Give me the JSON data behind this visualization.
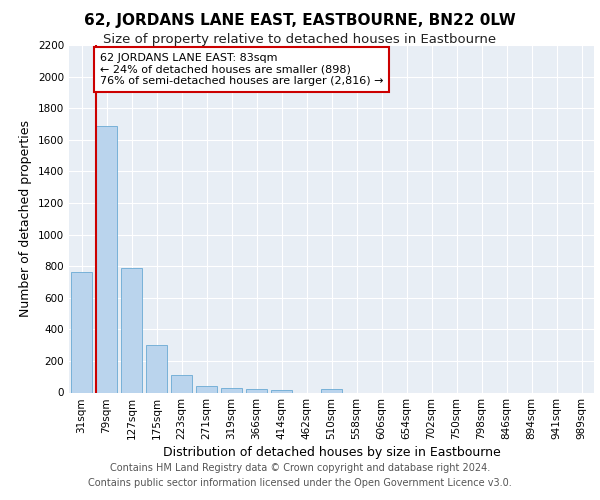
{
  "title": "62, JORDANS LANE EAST, EASTBOURNE, BN22 0LW",
  "subtitle": "Size of property relative to detached houses in Eastbourne",
  "xlabel": "Distribution of detached houses by size in Eastbourne",
  "ylabel": "Number of detached properties",
  "bar_color": "#bad4ed",
  "bar_edge_color": "#6aaad4",
  "background_color": "#e8eef5",
  "grid_color": "#ffffff",
  "annotation_line_color": "#cc0000",
  "annotation_box_color": "#cc0000",
  "annotation_text": "62 JORDANS LANE EAST: 83sqm\n← 24% of detached houses are smaller (898)\n76% of semi-detached houses are larger (2,816) →",
  "property_bin_index": 1,
  "categories": [
    "31sqm",
    "79sqm",
    "127sqm",
    "175sqm",
    "223sqm",
    "271sqm",
    "319sqm",
    "366sqm",
    "414sqm",
    "462sqm",
    "510sqm",
    "558sqm",
    "606sqm",
    "654sqm",
    "702sqm",
    "750sqm",
    "798sqm",
    "846sqm",
    "894sqm",
    "941sqm",
    "989sqm"
  ],
  "values": [
    760,
    1690,
    790,
    300,
    110,
    40,
    28,
    20,
    15,
    0,
    20,
    0,
    0,
    0,
    0,
    0,
    0,
    0,
    0,
    0,
    0
  ],
  "ylim": [
    0,
    2200
  ],
  "yticks": [
    0,
    200,
    400,
    600,
    800,
    1000,
    1200,
    1400,
    1600,
    1800,
    2000,
    2200
  ],
  "footer_line1": "Contains HM Land Registry data © Crown copyright and database right 2024.",
  "footer_line2": "Contains public sector information licensed under the Open Government Licence v3.0.",
  "title_fontsize": 11,
  "subtitle_fontsize": 9.5,
  "tick_fontsize": 7.5,
  "ylabel_fontsize": 9,
  "xlabel_fontsize": 9,
  "footer_fontsize": 7
}
